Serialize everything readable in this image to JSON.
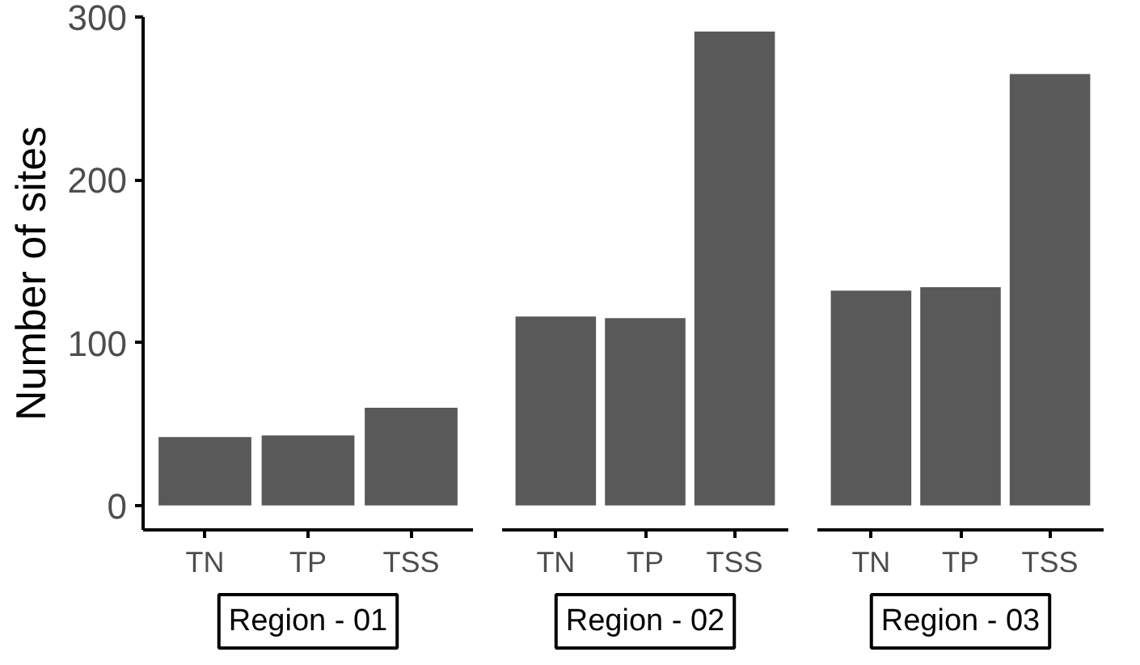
{
  "chart_data": [
    {
      "type": "bar",
      "title": "Region - 01",
      "ylabel": "Number of sites",
      "categories": [
        "TN",
        "TP",
        "TSS"
      ],
      "values": [
        42,
        43,
        60
      ],
      "color": "#595959",
      "ylim": [
        -15,
        300
      ],
      "yticks": [
        0,
        100,
        200,
        300
      ],
      "grid": false
    },
    {
      "type": "bar",
      "title": "Region - 02",
      "categories": [
        "TN",
        "TP",
        "TSS"
      ],
      "values": [
        116,
        115,
        291
      ],
      "color": "#595959",
      "ylim": [
        -15,
        300
      ],
      "yticks": [
        0,
        100,
        200,
        300
      ],
      "grid": false,
      "tick_labels": "x"
    },
    {
      "type": "bar",
      "title": "Region - 03",
      "categories": [
        "TN",
        "TP",
        "TSS"
      ],
      "values": [
        132,
        134,
        265
      ],
      "color": "#595959",
      "ylim": [
        -15,
        300
      ],
      "yticks": [
        0,
        100,
        200,
        300
      ],
      "grid": false,
      "tick_labels": "x"
    }
  ]
}
